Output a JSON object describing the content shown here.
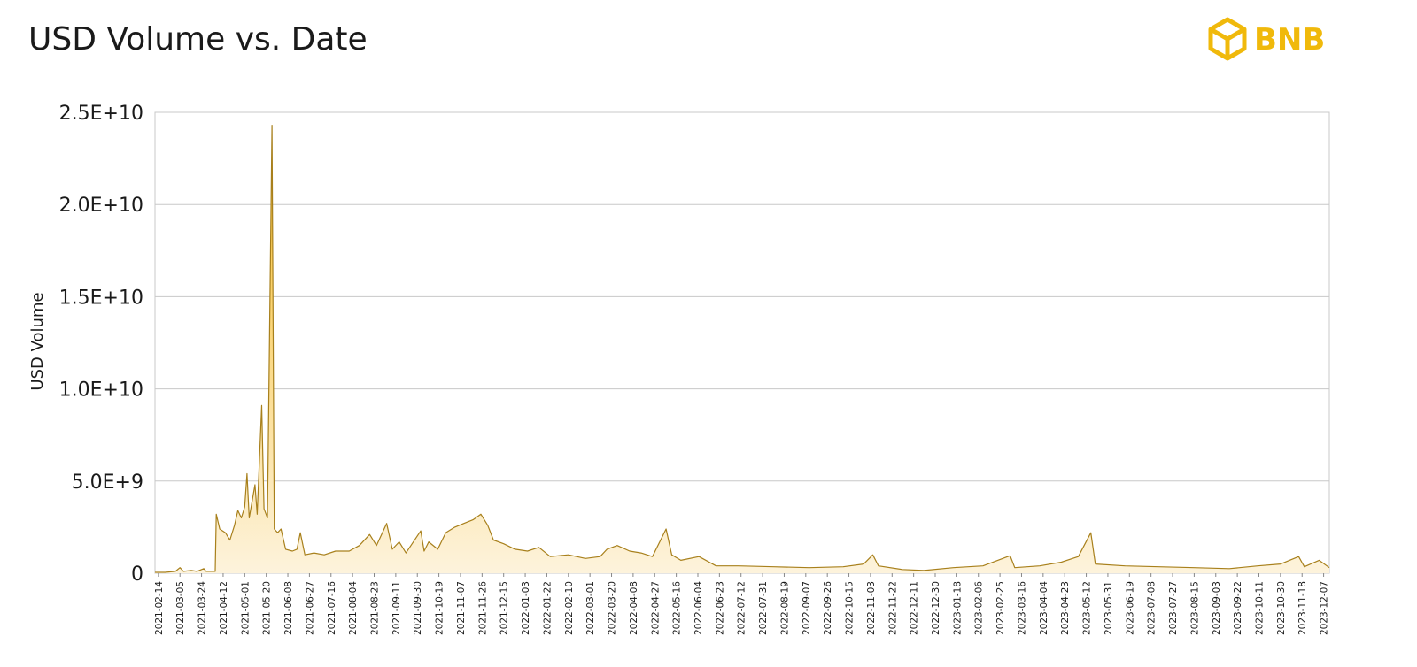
{
  "logo": "BNB",
  "chart_data": {
    "type": "area",
    "title": "USD Volume vs. Date",
    "y_label": "USD Volume",
    "color": "#a8801c",
    "fill_top": "#f9bf2c",
    "fill_bottom": "#fdf3dc",
    "grid": true,
    "xlim": [
      "2021-02-11",
      "2023-12-12"
    ],
    "xticks": [
      "2021-02-14",
      "2021-03-05",
      "2021-03-24",
      "2021-04-12",
      "2021-05-01",
      "2021-05-20",
      "2021-06-08",
      "2021-06-27",
      "2021-07-16",
      "2021-08-04",
      "2021-08-23",
      "2021-09-11",
      "2021-09-30",
      "2021-10-19",
      "2021-11-07",
      "2021-11-26",
      "2021-12-15",
      "2022-01-03",
      "2022-01-22",
      "2022-02-10",
      "2022-03-01",
      "2022-03-20",
      "2022-04-08",
      "2022-04-27",
      "2022-05-16",
      "2022-06-04",
      "2022-06-23",
      "2022-07-12",
      "2022-07-31",
      "2022-08-19",
      "2022-09-07",
      "2022-09-26",
      "2022-10-15",
      "2022-11-03",
      "2022-11-22",
      "2022-12-11",
      "2022-12-30",
      "2023-01-18",
      "2023-02-06",
      "2023-02-25",
      "2023-03-16",
      "2023-04-04",
      "2023-04-23",
      "2023-05-12",
      "2023-05-31",
      "2023-06-19",
      "2023-07-08",
      "2023-07-27",
      "2023-08-15",
      "2023-09-03",
      "2023-09-22",
      "2023-10-11",
      "2023-10-30",
      "2023-11-18",
      "2023-12-07"
    ],
    "ylim": [
      0,
      25000000000
    ],
    "yticks": [
      0,
      {
        "value": 5000000000,
        "label": "5.0E+9"
      },
      {
        "value": 10000000000,
        "label": "1.0E+10"
      },
      {
        "value": 15000000000,
        "label": "1.5E+10"
      },
      {
        "value": 20000000000,
        "label": "2.0E+10"
      },
      {
        "value": 25000000000,
        "label": "2.5E+10"
      }
    ],
    "x": [
      "2021-02-11",
      "2021-02-20",
      "2021-03-01",
      "2021-03-05",
      "2021-03-08",
      "2021-03-15",
      "2021-03-20",
      "2021-03-26",
      "2021-03-28",
      "2021-04-05",
      "2021-04-06",
      "2021-04-09",
      "2021-04-14",
      "2021-04-18",
      "2021-04-22",
      "2021-04-25",
      "2021-04-28",
      "2021-05-01",
      "2021-05-03",
      "2021-05-05",
      "2021-05-10",
      "2021-05-12",
      "2021-05-16",
      "2021-05-18",
      "2021-05-21",
      "2021-05-25",
      "2021-05-27",
      "2021-05-30",
      "2021-06-02",
      "2021-06-06",
      "2021-06-12",
      "2021-06-16",
      "2021-06-19",
      "2021-06-23",
      "2021-07-01",
      "2021-07-10",
      "2021-07-20",
      "2021-08-01",
      "2021-08-10",
      "2021-08-19",
      "2021-08-25",
      "2021-09-03",
      "2021-09-08",
      "2021-09-14",
      "2021-09-20",
      "2021-10-03",
      "2021-10-06",
      "2021-10-10",
      "2021-10-18",
      "2021-10-25",
      "2021-11-02",
      "2021-11-10",
      "2021-11-18",
      "2021-11-25",
      "2021-12-01",
      "2021-12-06",
      "2021-12-15",
      "2021-12-25",
      "2022-01-05",
      "2022-01-15",
      "2022-01-25",
      "2022-02-10",
      "2022-02-25",
      "2022-03-10",
      "2022-03-16",
      "2022-03-25",
      "2022-04-05",
      "2022-04-15",
      "2022-04-25",
      "2022-05-07",
      "2022-05-12",
      "2022-05-20",
      "2022-06-05",
      "2022-06-20",
      "2022-07-10",
      "2022-08-10",
      "2022-09-10",
      "2022-10-10",
      "2022-10-28",
      "2022-11-05",
      "2022-11-10",
      "2022-12-01",
      "2022-12-20",
      "2023-01-15",
      "2023-02-10",
      "2023-03-06",
      "2023-03-10",
      "2023-04-01",
      "2023-04-20",
      "2023-05-05",
      "2023-05-16",
      "2023-05-20",
      "2023-06-15",
      "2023-07-15",
      "2023-08-15",
      "2023-09-15",
      "2023-10-10",
      "2023-10-30",
      "2023-11-15",
      "2023-11-20",
      "2023-12-03",
      "2023-12-12"
    ],
    "values": [
      50000000.0,
      50000000.0,
      100000000.0,
      300000000.0,
      100000000.0,
      150000000.0,
      100000000.0,
      250000000.0,
      100000000.0,
      100000000.0,
      3200000000.0,
      2400000000.0,
      2200000000.0,
      1800000000.0,
      2600000000.0,
      3400000000.0,
      3000000000.0,
      3600000000.0,
      5400000000.0,
      3000000000.0,
      4800000000.0,
      3200000000.0,
      9100000000.0,
      3500000000.0,
      3000000000.0,
      24300000000.0,
      2400000000.0,
      2200000000.0,
      2400000000.0,
      1300000000.0,
      1200000000.0,
      1300000000.0,
      2200000000.0,
      1000000000.0,
      1100000000.0,
      1000000000.0,
      1200000000.0,
      1200000000.0,
      1500000000.0,
      2100000000.0,
      1500000000.0,
      2700000000.0,
      1300000000.0,
      1700000000.0,
      1100000000.0,
      2300000000.0,
      1200000000.0,
      1700000000.0,
      1300000000.0,
      2200000000.0,
      2500000000.0,
      2700000000.0,
      2900000000.0,
      3200000000.0,
      2600000000.0,
      1800000000.0,
      1600000000.0,
      1300000000.0,
      1200000000.0,
      1400000000.0,
      900000000.0,
      1000000000.0,
      800000000.0,
      900000000.0,
      1300000000.0,
      1500000000.0,
      1200000000.0,
      1100000000.0,
      900000000.0,
      2400000000.0,
      1000000000.0,
      700000000.0,
      900000000.0,
      400000000.0,
      400000000.0,
      350000000.0,
      300000000.0,
      350000000.0,
      500000000.0,
      1000000000.0,
      400000000.0,
      200000000.0,
      150000000.0,
      300000000.0,
      400000000.0,
      950000000.0,
      300000000.0,
      400000000.0,
      600000000.0,
      900000000.0,
      2200000000.0,
      500000000.0,
      400000000.0,
      350000000.0,
      300000000.0,
      250000000.0,
      400000000.0,
      500000000.0,
      900000000.0,
      350000000.0,
      700000000.0,
      300000000.0
    ]
  }
}
